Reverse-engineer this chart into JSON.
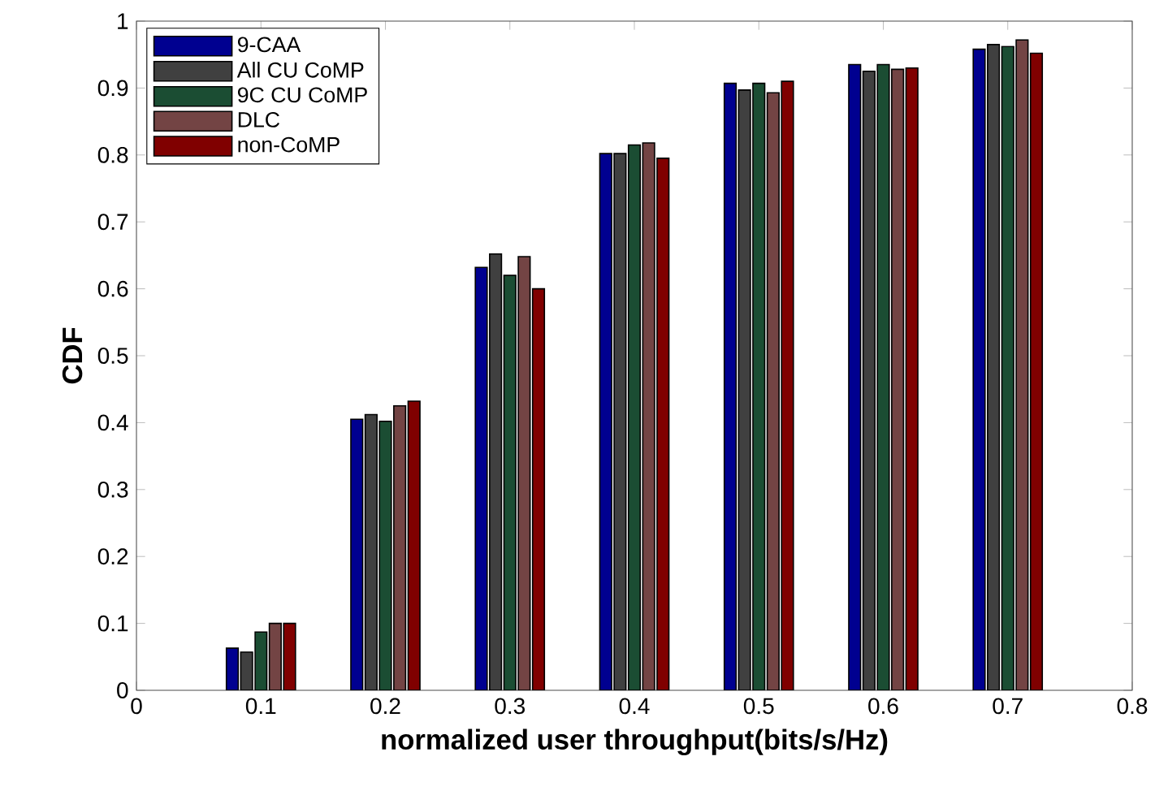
{
  "chart_data": {
    "type": "bar",
    "xlabel": "normalized user throughput(bits/s/Hz)",
    "ylabel": "CDF",
    "x": [
      0.1,
      0.2,
      0.3,
      0.4,
      0.5,
      0.6,
      0.7
    ],
    "series": [
      {
        "name": "9-CAA",
        "color": "#000090",
        "values": [
          0.063,
          0.405,
          0.632,
          0.802,
          0.907,
          0.935,
          0.958
        ]
      },
      {
        "name": "All CU CoMP",
        "color": "#404040",
        "values": [
          0.057,
          0.412,
          0.652,
          0.802,
          0.897,
          0.925,
          0.965
        ]
      },
      {
        "name": "9C CU CoMP",
        "color": "#1b4d33",
        "values": [
          0.087,
          0.402,
          0.62,
          0.815,
          0.907,
          0.935,
          0.962
        ]
      },
      {
        "name": "DLC",
        "color": "#734444",
        "values": [
          0.1,
          0.425,
          0.648,
          0.818,
          0.893,
          0.928,
          0.972
        ]
      },
      {
        "name": "non-CoMP",
        "color": "#800000",
        "values": [
          0.1,
          0.432,
          0.6,
          0.795,
          0.91,
          0.93,
          0.952
        ]
      }
    ],
    "xlim": [
      0,
      0.8
    ],
    "ylim": [
      0,
      1
    ],
    "xticks": [
      0,
      0.1,
      0.2,
      0.3,
      0.4,
      0.5,
      0.6,
      0.7,
      0.8
    ],
    "yticks": [
      0,
      0.1,
      0.2,
      0.3,
      0.4,
      0.5,
      0.6,
      0.7,
      0.8,
      0.9,
      1
    ],
    "legend": "top left"
  }
}
